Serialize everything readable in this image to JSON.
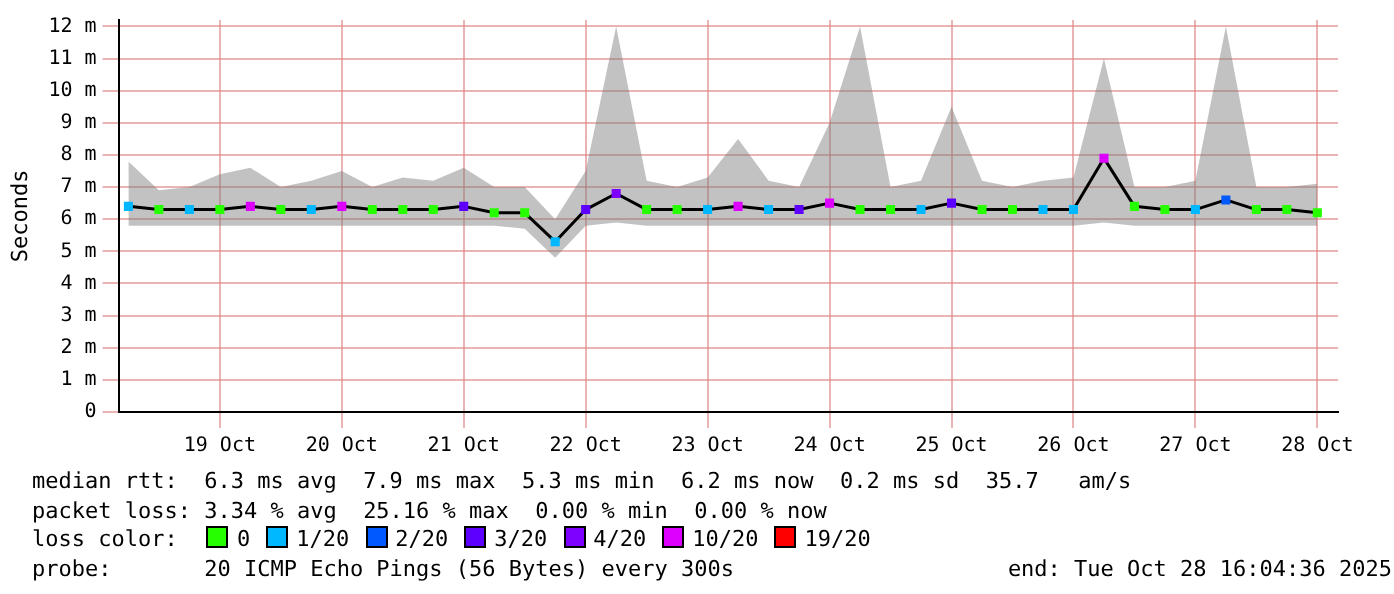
{
  "chart_data": {
    "type": "line",
    "ylabel": "Seconds",
    "legend": "bottom",
    "legend_title": "loss color:",
    "grid": true,
    "marker": "square",
    "xlim": [
      "2025-10-18T16:04",
      "2025-10-28T16:04"
    ],
    "xticks": [
      {
        "value": "2025-10-19T12:00",
        "label": "19 Oct"
      },
      {
        "value": "2025-10-20T12:00",
        "label": "20 Oct"
      },
      {
        "value": "2025-10-21T12:00",
        "label": "21 Oct"
      },
      {
        "value": "2025-10-22T12:00",
        "label": "22 Oct"
      },
      {
        "value": "2025-10-23T12:00",
        "label": "23 Oct"
      },
      {
        "value": "2025-10-24T12:00",
        "label": "24 Oct"
      },
      {
        "value": "2025-10-25T12:00",
        "label": "25 Oct"
      },
      {
        "value": "2025-10-26T12:00",
        "label": "26 Oct"
      },
      {
        "value": "2025-10-27T12:00",
        "label": "27 Oct"
      },
      {
        "value": "2025-10-28T12:00",
        "label": "28 Oct"
      }
    ],
    "ylim": [
      0,
      12.2
    ],
    "yticks": [
      {
        "value": 0,
        "label": "0"
      },
      {
        "value": 1,
        "label": "1 m"
      },
      {
        "value": 2,
        "label": "2 m"
      },
      {
        "value": 3,
        "label": "3 m"
      },
      {
        "value": 4,
        "label": "4 m"
      },
      {
        "value": 5,
        "label": "5 m"
      },
      {
        "value": 6,
        "label": "6 m"
      },
      {
        "value": 7,
        "label": "7 m"
      },
      {
        "value": 8,
        "label": "8 m"
      },
      {
        "value": 9,
        "label": "9 m"
      },
      {
        "value": 10,
        "label": "10 m"
      },
      {
        "value": 11,
        "label": "11 m"
      },
      {
        "value": 12,
        "label": "12 m"
      }
    ],
    "x": [
      "2025-10-18T18:00",
      "2025-10-19T00:00",
      "2025-10-19T06:00",
      "2025-10-19T12:00",
      "2025-10-19T18:00",
      "2025-10-20T00:00",
      "2025-10-20T06:00",
      "2025-10-20T12:00",
      "2025-10-20T18:00",
      "2025-10-21T00:00",
      "2025-10-21T06:00",
      "2025-10-21T12:00",
      "2025-10-21T18:00",
      "2025-10-22T00:00",
      "2025-10-22T06:00",
      "2025-10-22T12:00",
      "2025-10-22T18:00",
      "2025-10-23T00:00",
      "2025-10-23T06:00",
      "2025-10-23T12:00",
      "2025-10-23T18:00",
      "2025-10-24T00:00",
      "2025-10-24T06:00",
      "2025-10-24T12:00",
      "2025-10-24T18:00",
      "2025-10-25T00:00",
      "2025-10-25T06:00",
      "2025-10-25T12:00",
      "2025-10-25T18:00",
      "2025-10-26T00:00",
      "2025-10-26T06:00",
      "2025-10-26T12:00",
      "2025-10-26T18:00",
      "2025-10-27T00:00",
      "2025-10-27T06:00",
      "2025-10-27T12:00",
      "2025-10-27T18:00",
      "2025-10-28T00:00",
      "2025-10-28T06:00",
      "2025-10-28T12:00"
    ],
    "series": [
      {
        "color": "#000000",
        "marker": "none",
        "values": [
          6.4,
          6.3,
          6.3,
          6.3,
          6.4,
          6.3,
          6.3,
          6.4,
          6.3,
          6.3,
          6.3,
          6.4,
          6.2,
          6.2,
          5.3,
          6.3,
          6.8,
          6.3,
          6.3,
          6.3,
          6.4,
          6.3,
          6.3,
          6.5,
          6.3,
          6.3,
          6.3,
          6.5,
          6.3,
          6.3,
          6.3,
          6.3,
          7.9,
          6.4,
          6.3,
          6.3,
          6.6,
          6.3,
          6.3,
          6.2
        ],
        "lower": [
          5.8,
          5.8,
          5.8,
          5.8,
          5.8,
          5.8,
          5.8,
          5.8,
          5.8,
          5.8,
          5.8,
          5.8,
          5.8,
          5.7,
          4.8,
          5.8,
          5.9,
          5.8,
          5.8,
          5.8,
          5.8,
          5.8,
          5.8,
          5.8,
          5.8,
          5.8,
          5.8,
          5.8,
          5.8,
          5.8,
          5.8,
          5.8,
          5.9,
          5.8,
          5.8,
          5.8,
          5.8,
          5.8,
          5.8,
          5.8
        ],
        "upper": [
          7.8,
          6.9,
          7.0,
          7.4,
          7.6,
          7.0,
          7.2,
          7.5,
          7.0,
          7.3,
          7.2,
          7.6,
          7.0,
          7.0,
          6.0,
          7.5,
          12.0,
          7.2,
          7.0,
          7.3,
          8.5,
          7.2,
          7.0,
          9.0,
          12.0,
          7.0,
          7.2,
          9.5,
          7.2,
          7.0,
          7.2,
          7.3,
          11.0,
          7.0,
          7.0,
          7.2,
          12.0,
          7.0,
          7.0,
          7.1
        ]
      },
      {
        "type": "scatter",
        "name": "0",
        "color": "#26ff00",
        "x": [
          "2025-10-19T00:00",
          "2025-10-19T12:00",
          "2025-10-20T00:00",
          "2025-10-20T18:00",
          "2025-10-21T00:00",
          "2025-10-21T06:00",
          "2025-10-21T18:00",
          "2025-10-22T00:00",
          "2025-10-23T00:00",
          "2025-10-23T06:00",
          "2025-10-24T18:00",
          "2025-10-25T00:00",
          "2025-10-25T18:00",
          "2025-10-26T00:00",
          "2025-10-27T00:00",
          "2025-10-27T06:00",
          "2025-10-28T00:00",
          "2025-10-28T06:00",
          "2025-10-28T12:00"
        ],
        "values": [
          6.3,
          6.3,
          6.3,
          6.3,
          6.3,
          6.3,
          6.2,
          6.2,
          6.3,
          6.3,
          6.3,
          6.3,
          6.3,
          6.3,
          6.4,
          6.3,
          6.3,
          6.3,
          6.2
        ]
      },
      {
        "type": "scatter",
        "name": "1/20",
        "color": "#00b8ff",
        "x": [
          "2025-10-18T18:00",
          "2025-10-19T06:00",
          "2025-10-20T06:00",
          "2025-10-22T06:00",
          "2025-10-23T12:00",
          "2025-10-24T00:00",
          "2025-10-25T06:00",
          "2025-10-26T06:00",
          "2025-10-26T12:00",
          "2025-10-27T12:00"
        ],
        "values": [
          6.4,
          6.3,
          6.3,
          5.3,
          6.3,
          6.3,
          6.3,
          6.3,
          6.3,
          6.3
        ]
      },
      {
        "type": "scatter",
        "name": "2/20",
        "color": "#0059ff",
        "x": [
          "2025-10-27T18:00"
        ],
        "values": [
          6.6
        ]
      },
      {
        "type": "scatter",
        "name": "3/20",
        "color": "#5e00ff",
        "x": [
          "2025-10-21T12:00",
          "2025-10-22T12:00",
          "2025-10-24T06:00",
          "2025-10-25T12:00"
        ],
        "values": [
          6.4,
          6.3,
          6.3,
          6.5
        ]
      },
      {
        "type": "scatter",
        "name": "4/20",
        "color": "#7e00ff",
        "x": [
          "2025-10-22T18:00"
        ],
        "values": [
          6.8
        ]
      },
      {
        "type": "scatter",
        "name": "10/20",
        "color": "#dd00ff",
        "x": [
          "2025-10-19T18:00",
          "2025-10-20T12:00",
          "2025-10-23T18:00",
          "2025-10-24T12:00",
          "2025-10-26T18:00"
        ],
        "values": [
          6.4,
          6.4,
          6.4,
          6.5,
          7.9
        ]
      },
      {
        "type": "scatter",
        "name": "19/20",
        "color": "#ff0000",
        "values": [
          null,
          null,
          null,
          null,
          null,
          null,
          null,
          null,
          null,
          null,
          null,
          null,
          null,
          null,
          null,
          null,
          null,
          null,
          null,
          null,
          null,
          null,
          null,
          null,
          null,
          null,
          null,
          null,
          null,
          null,
          null,
          null,
          null,
          null,
          null,
          null,
          null,
          null,
          null,
          null
        ]
      }
    ],
    "annotations": [
      "median rtt:  6.3 ms avg  7.9 ms max  5.3 ms min  6.2 ms now  0.2 ms sd  35.7   am/s",
      "packet loss: 3.34 % avg  25.16 % max  0.00 % min  0.00 % now",
      "probe:       20 ICMP Echo Pings (56 Bytes) every 300s",
      "end: Tue Oct 28 16:04:36 2025"
    ]
  }
}
